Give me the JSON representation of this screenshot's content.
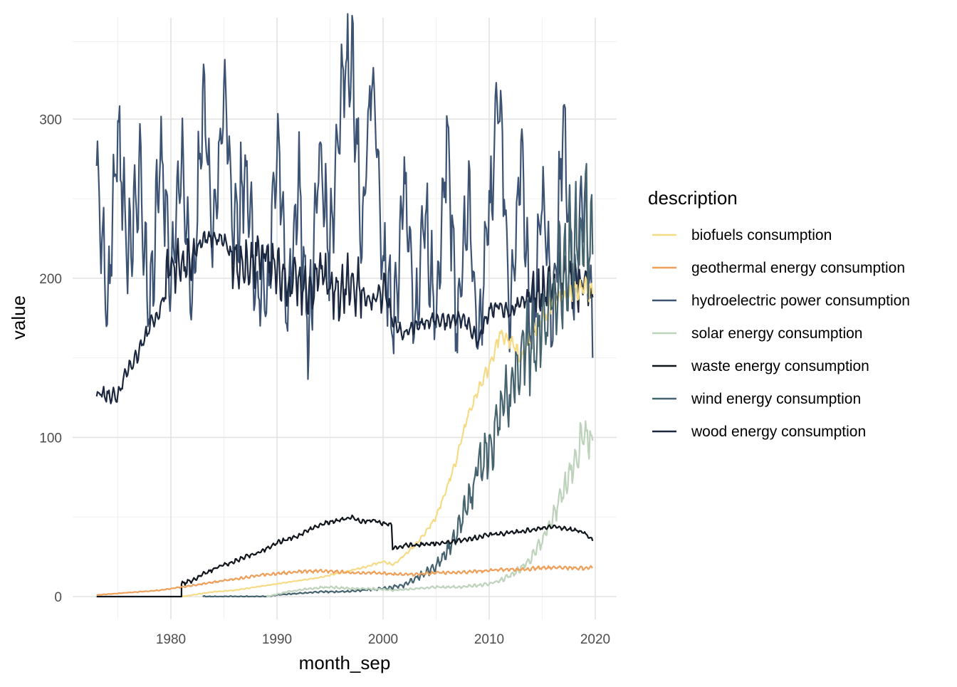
{
  "chart_data": {
    "type": "line",
    "title": "",
    "xlabel": "month_sep",
    "ylabel": "value",
    "xlim": [
      1973,
      2019.75
    ],
    "ylim": [
      0,
      350
    ],
    "x_ticks": [
      1980,
      1990,
      2000,
      2010,
      2020
    ],
    "y_ticks": [
      0,
      100,
      200,
      300
    ],
    "grid": true,
    "legend_title": "description",
    "legend_position": "right",
    "series": [
      {
        "name": "biofuels consumption",
        "color": "#F6DB86",
        "points": [
          [
            1981,
            0
          ],
          [
            1982,
            1
          ],
          [
            1984,
            3
          ],
          [
            1986,
            4
          ],
          [
            1988,
            6
          ],
          [
            1990,
            8
          ],
          [
            1992,
            10
          ],
          [
            1994,
            12
          ],
          [
            1996,
            15
          ],
          [
            1998,
            18
          ],
          [
            2000,
            22
          ],
          [
            2001,
            20
          ],
          [
            2002,
            26
          ],
          [
            2003,
            32
          ],
          [
            2004,
            40
          ],
          [
            2005,
            50
          ],
          [
            2006,
            68
          ],
          [
            2007,
            88
          ],
          [
            2008,
            115
          ],
          [
            2009,
            130
          ],
          [
            2010,
            145
          ],
          [
            2011,
            165
          ],
          [
            2012,
            160
          ],
          [
            2013,
            150
          ],
          [
            2014,
            165
          ],
          [
            2015,
            175
          ],
          [
            2016,
            185
          ],
          [
            2017,
            190
          ],
          [
            2018,
            192
          ],
          [
            2019,
            195
          ],
          [
            2019.75,
            190
          ]
        ]
      },
      {
        "name": "geothermal energy consumption",
        "color": "#EE9F5A",
        "points": [
          [
            1973,
            1
          ],
          [
            1975,
            2
          ],
          [
            1977,
            3
          ],
          [
            1979,
            4
          ],
          [
            1981,
            6
          ],
          [
            1983,
            8
          ],
          [
            1985,
            10
          ],
          [
            1987,
            12
          ],
          [
            1989,
            14
          ],
          [
            1991,
            15
          ],
          [
            1993,
            16
          ],
          [
            1995,
            16
          ],
          [
            1997,
            15
          ],
          [
            1999,
            15
          ],
          [
            2001,
            14
          ],
          [
            2003,
            14
          ],
          [
            2005,
            15
          ],
          [
            2007,
            15
          ],
          [
            2009,
            16
          ],
          [
            2011,
            17
          ],
          [
            2013,
            17
          ],
          [
            2015,
            18
          ],
          [
            2017,
            18
          ],
          [
            2019,
            18
          ],
          [
            2019.75,
            18
          ]
        ]
      },
      {
        "name": "hydroelectric power consumption",
        "color": "#3D5373",
        "points": [
          [
            1973,
            270
          ],
          [
            1974,
            180
          ],
          [
            1975,
            290
          ],
          [
            1976,
            215
          ],
          [
            1977,
            270
          ],
          [
            1978,
            175
          ],
          [
            1979,
            285
          ],
          [
            1980,
            195
          ],
          [
            1981,
            275
          ],
          [
            1982,
            190
          ],
          [
            1983,
            310
          ],
          [
            1984,
            230
          ],
          [
            1985,
            320
          ],
          [
            1986,
            225
          ],
          [
            1987,
            270
          ],
          [
            1988,
            200
          ],
          [
            1989,
            180
          ],
          [
            1990,
            290
          ],
          [
            1991,
            180
          ],
          [
            1992,
            270
          ],
          [
            1993,
            160
          ],
          [
            1994,
            280
          ],
          [
            1995,
            215
          ],
          [
            1996,
            320
          ],
          [
            1997,
            345
          ],
          [
            1998,
            230
          ],
          [
            1999,
            330
          ],
          [
            2000,
            210
          ],
          [
            2001,
            165
          ],
          [
            2002,
            260
          ],
          [
            2003,
            175
          ],
          [
            2004,
            240
          ],
          [
            2005,
            170
          ],
          [
            2006,
            290
          ],
          [
            2007,
            160
          ],
          [
            2008,
            250
          ],
          [
            2009,
            165
          ],
          [
            2010,
            240
          ],
          [
            2011,
            315
          ],
          [
            2012,
            175
          ],
          [
            2013,
            270
          ],
          [
            2014,
            160
          ],
          [
            2015,
            250
          ],
          [
            2016,
            175
          ],
          [
            2017,
            300
          ],
          [
            2018,
            190
          ],
          [
            2019,
            270
          ],
          [
            2019.75,
            150
          ]
        ]
      },
      {
        "name": "solar energy consumption",
        "color": "#BED3BB",
        "points": [
          [
            1989,
            0
          ],
          [
            1991,
            3
          ],
          [
            1993,
            5
          ],
          [
            1995,
            6
          ],
          [
            1997,
            5
          ],
          [
            1999,
            5
          ],
          [
            2001,
            4
          ],
          [
            2003,
            5
          ],
          [
            2005,
            6
          ],
          [
            2007,
            6
          ],
          [
            2009,
            7
          ],
          [
            2010,
            8
          ],
          [
            2011,
            10
          ],
          [
            2012,
            13
          ],
          [
            2013,
            18
          ],
          [
            2014,
            25
          ],
          [
            2015,
            35
          ],
          [
            2016,
            50
          ],
          [
            2017,
            65
          ],
          [
            2018,
            85
          ],
          [
            2019,
            105
          ],
          [
            2019.75,
            98
          ]
        ]
      },
      {
        "name": "waste energy consumption",
        "color": "#11161C",
        "points": [
          [
            1973,
            0
          ],
          [
            1981,
            0
          ],
          [
            1981,
            8
          ],
          [
            1982,
            10
          ],
          [
            1983,
            14
          ],
          [
            1984,
            17
          ],
          [
            1985,
            20
          ],
          [
            1986,
            22
          ],
          [
            1987,
            25
          ],
          [
            1988,
            27
          ],
          [
            1989,
            30
          ],
          [
            1990,
            34
          ],
          [
            1991,
            36
          ],
          [
            1992,
            38
          ],
          [
            1993,
            42
          ],
          [
            1994,
            45
          ],
          [
            1995,
            47
          ],
          [
            1996,
            48
          ],
          [
            1997,
            50
          ],
          [
            1998,
            47
          ],
          [
            1999,
            48
          ],
          [
            2000,
            46
          ],
          [
            2000.8,
            45
          ],
          [
            2000.9,
            30
          ],
          [
            2002,
            32
          ],
          [
            2004,
            33
          ],
          [
            2006,
            34
          ],
          [
            2008,
            36
          ],
          [
            2010,
            39
          ],
          [
            2012,
            40
          ],
          [
            2014,
            42
          ],
          [
            2016,
            44
          ],
          [
            2018,
            42
          ],
          [
            2019,
            40
          ],
          [
            2019.75,
            35
          ]
        ]
      },
      {
        "name": "wind energy consumption",
        "color": "#466470",
        "points": [
          [
            1983,
            0
          ],
          [
            1989,
            0
          ],
          [
            1990,
            1
          ],
          [
            1992,
            2
          ],
          [
            1994,
            3
          ],
          [
            1996,
            3
          ],
          [
            1998,
            4
          ],
          [
            2000,
            5
          ],
          [
            2002,
            7
          ],
          [
            2004,
            15
          ],
          [
            2005,
            20
          ],
          [
            2006,
            28
          ],
          [
            2007,
            40
          ],
          [
            2008,
            60
          ],
          [
            2009,
            80
          ],
          [
            2010,
            95
          ],
          [
            2011,
            110
          ],
          [
            2012,
            130
          ],
          [
            2013,
            150
          ],
          [
            2014,
            160
          ],
          [
            2015,
            170
          ],
          [
            2016,
            190
          ],
          [
            2017,
            210
          ],
          [
            2018,
            220
          ],
          [
            2019,
            240
          ],
          [
            2019.75,
            215
          ]
        ]
      },
      {
        "name": "wood energy consumption",
        "color": "#1B2840",
        "points": [
          [
            1973,
            128
          ],
          [
            1975,
            126
          ],
          [
            1976,
            144
          ],
          [
            1977,
            154
          ],
          [
            1978,
            170
          ],
          [
            1979,
            180
          ],
          [
            1980,
            208
          ],
          [
            1981,
            212
          ],
          [
            1982,
            212
          ],
          [
            1983,
            225
          ],
          [
            1984,
            225
          ],
          [
            1985,
            224
          ],
          [
            1986,
            210
          ],
          [
            1987,
            208
          ],
          [
            1988,
            213
          ],
          [
            1989,
            216
          ],
          [
            1990,
            205
          ],
          [
            1991,
            195
          ],
          [
            1992,
            200
          ],
          [
            1993,
            190
          ],
          [
            1994,
            205
          ],
          [
            1995,
            195
          ],
          [
            1996,
            190
          ],
          [
            1997,
            200
          ],
          [
            1998,
            190
          ],
          [
            1999,
            185
          ],
          [
            2000,
            195
          ],
          [
            2001,
            172
          ],
          [
            2002,
            165
          ],
          [
            2003,
            170
          ],
          [
            2004,
            172
          ],
          [
            2005,
            175
          ],
          [
            2006,
            172
          ],
          [
            2007,
            175
          ],
          [
            2008,
            172
          ],
          [
            2009,
            160
          ],
          [
            2010,
            180
          ],
          [
            2011,
            182
          ],
          [
            2012,
            178
          ],
          [
            2013,
            185
          ],
          [
            2014,
            190
          ],
          [
            2015,
            192
          ],
          [
            2016,
            195
          ],
          [
            2017,
            198
          ],
          [
            2018,
            200
          ],
          [
            2019,
            195
          ],
          [
            2019.75,
            188
          ]
        ]
      }
    ]
  }
}
